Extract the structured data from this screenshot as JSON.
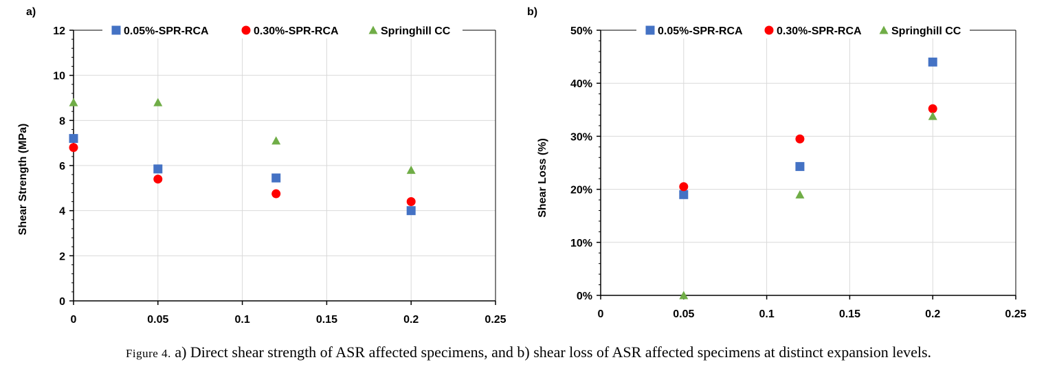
{
  "colors": {
    "s1": "#4472C4",
    "s2": "#FF0000",
    "s3": "#70AD47",
    "grid": "#D9D9D9",
    "axis": "#000000"
  },
  "caption": {
    "prefix": "Figure 4.",
    "text": " a) Direct shear strength of ASR affected specimens, and b) shear loss of ASR affected specimens at distinct expansion levels."
  },
  "chart_data": [
    {
      "type": "scatter",
      "panel_label": "a)",
      "ylabel": "Shear Strength (MPa)",
      "xlabel": "",
      "xlim": [
        0,
        0.25
      ],
      "ylim": [
        0,
        12
      ],
      "xticks": [
        "0",
        "0.05",
        "0.1",
        "0.15",
        "0.2",
        "0.25"
      ],
      "yticks": [
        "0",
        "2",
        "4",
        "6",
        "8",
        "10",
        "12"
      ],
      "grid": true,
      "legend": "top",
      "series": [
        {
          "name": "0.05%-SPR-RCA",
          "marker": "square",
          "x": [
            0,
            0.05,
            0.12,
            0.2
          ],
          "y": [
            7.2,
            5.85,
            5.45,
            4.0
          ]
        },
        {
          "name": "0.30%-SPR-RCA",
          "marker": "circle",
          "x": [
            0,
            0.05,
            0.12,
            0.2
          ],
          "y": [
            6.8,
            5.4,
            4.75,
            4.4
          ]
        },
        {
          "name": "Springhill CC",
          "marker": "triangle",
          "x": [
            0,
            0.05,
            0.12,
            0.2
          ],
          "y": [
            8.8,
            8.8,
            7.1,
            5.8
          ]
        }
      ]
    },
    {
      "type": "scatter",
      "panel_label": "b)",
      "ylabel": "Shear  Loss (%)",
      "xlabel": "",
      "xlim": [
        0,
        0.25
      ],
      "ylim": [
        0,
        50
      ],
      "xticks": [
        "0",
        "0.05",
        "0.1",
        "0.15",
        "0.2",
        "0.25"
      ],
      "yticks": [
        "0%",
        "10%",
        "20%",
        "30%",
        "40%",
        "50%"
      ],
      "grid": true,
      "legend": "top",
      "series": [
        {
          "name": "0.05%-SPR-RCA",
          "marker": "square",
          "x": [
            0.05,
            0.12,
            0.2
          ],
          "y": [
            19.0,
            24.3,
            44.0
          ]
        },
        {
          "name": "0.30%-SPR-RCA",
          "marker": "circle",
          "x": [
            0.05,
            0.12,
            0.2
          ],
          "y": [
            20.5,
            29.5,
            35.2
          ]
        },
        {
          "name": "Springhill CC",
          "marker": "triangle",
          "x": [
            0.05,
            0.12,
            0.2
          ],
          "y": [
            0,
            19.0,
            33.8
          ]
        }
      ]
    }
  ]
}
